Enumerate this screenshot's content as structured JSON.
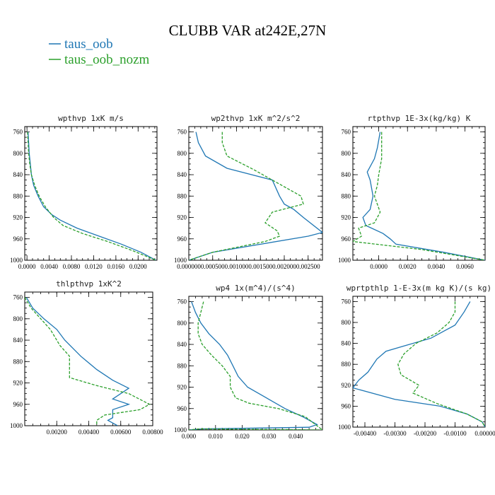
{
  "figure_title": "CLUBB VAR at242E,27N",
  "legend": [
    {
      "label": "taus_oob",
      "color": "#1f77b4"
    },
    {
      "label": "taus_oob_nozm",
      "color": "#2ca02c"
    }
  ],
  "chart_data": [
    {
      "type": "line",
      "title": "wpthvp   1xK m/s",
      "xlim": [
        -0.0004,
        0.0234
      ],
      "ylim": [
        1000,
        750
      ],
      "x_ticks": [
        "0.0000",
        "0.0040",
        "0.0080",
        "0.0120",
        "0.0160",
        "0.0200"
      ],
      "x_tick_values": [
        0.0,
        0.004,
        0.008,
        0.012,
        0.016,
        0.02
      ],
      "y_ticks": [
        "760",
        "800",
        "840",
        "880",
        "920",
        "960",
        "1000"
      ],
      "y_tick_values": [
        760,
        800,
        840,
        880,
        920,
        960,
        1000
      ],
      "series": [
        {
          "name": "taus_oob",
          "color": "#1f77b4",
          "x": [
            0.0002,
            0.0003,
            0.0004,
            0.0006,
            0.0008,
            0.0012,
            0.002,
            0.003,
            0.0045,
            0.006,
            0.009,
            0.013,
            0.017,
            0.0205,
            0.0232
          ],
          "y": [
            760,
            780,
            800,
            820,
            840,
            860,
            880,
            900,
            915,
            925,
            940,
            955,
            970,
            985,
            1000
          ]
        },
        {
          "name": "taus_oob_nozm",
          "color": "#2ca02c",
          "x": [
            0.0001,
            0.0002,
            0.0003,
            0.0005,
            0.0008,
            0.0014,
            0.0022,
            0.0033,
            0.0048,
            0.0065,
            0.01,
            0.0145,
            0.019,
            0.0232
          ],
          "y": [
            760,
            780,
            800,
            820,
            840,
            860,
            880,
            900,
            920,
            935,
            950,
            965,
            982,
            1000
          ]
        }
      ]
    },
    {
      "type": "line",
      "title": "wp2thvp   1xK m^2/s^2",
      "xlim": [
        0.0,
        0.0028
      ],
      "ylim": [
        1000,
        750
      ],
      "x_ticks": [
        "0.000000",
        "0.000500",
        "0.001000",
        "0.001500",
        "0.002000",
        "0.002500"
      ],
      "x_tick_values": [
        0.0,
        0.0005,
        0.001,
        0.0015,
        0.002,
        0.0025
      ],
      "y_ticks": [
        "760",
        "800",
        "840",
        "880",
        "920",
        "960",
        "1000"
      ],
      "y_tick_values": [
        760,
        800,
        840,
        880,
        920,
        960,
        1000
      ],
      "series": [
        {
          "name": "taus_oob",
          "color": "#1f77b4",
          "x": [
            0.00015,
            0.0002,
            0.00035,
            0.0008,
            0.00175,
            0.0019,
            0.002,
            0.0022,
            0.0024,
            0.0028,
            0.0025,
            0.0005,
            0.0
          ],
          "y": [
            760,
            780,
            805,
            828,
            850,
            880,
            895,
            905,
            920,
            948,
            955,
            985,
            1000
          ]
        },
        {
          "name": "taus_oob_nozm",
          "color": "#2ca02c",
          "x": [
            0.0007,
            0.0007,
            0.0008,
            0.00135,
            0.00235,
            0.0024,
            0.00175,
            0.0016,
            0.00185,
            0.0019,
            0.0016,
            0.0005,
            0.0
          ],
          "y": [
            760,
            780,
            805,
            830,
            880,
            895,
            910,
            930,
            945,
            955,
            965,
            985,
            1000
          ]
        }
      ]
    },
    {
      "type": "line",
      "title": "rtpthvp   1E-3x(kg/kg) K",
      "xlim": [
        -0.0018,
        0.0074
      ],
      "ylim": [
        1000,
        750
      ],
      "x_ticks": [
        "0.0000",
        "0.0020",
        "0.0040",
        "0.0060"
      ],
      "x_tick_values": [
        0.0,
        0.002,
        0.004,
        0.006
      ],
      "y_ticks": [
        "760",
        "800",
        "840",
        "880",
        "920",
        "960",
        "1000"
      ],
      "y_tick_values": [
        760,
        800,
        840,
        880,
        920,
        960,
        1000
      ],
      "series": [
        {
          "name": "taus_oob",
          "color": "#1f77b4",
          "x": [
            0.0001,
            -0.0001,
            -0.0003,
            -0.0008,
            -0.0006,
            -0.0004,
            -0.0006,
            -0.0011,
            -0.0009,
            0.0003,
            0.0008,
            0.0012,
            0.0045,
            0.0074
          ],
          "y": [
            760,
            790,
            810,
            835,
            850,
            880,
            905,
            920,
            935,
            950,
            960,
            970,
            985,
            1000
          ]
        },
        {
          "name": "taus_oob_nozm",
          "color": "#2ca02c",
          "x": [
            0.0002,
            0.0002,
            0.0002,
            0.0,
            -0.0001,
            -0.0003,
            0.0001,
            -0.0003,
            -0.0014,
            -0.0012,
            -0.0018,
            0.003,
            0.0074
          ],
          "y": [
            760,
            790,
            810,
            840,
            860,
            880,
            910,
            930,
            940,
            955,
            965,
            980,
            1000
          ]
        }
      ]
    },
    {
      "type": "line",
      "title": "thlpthvp   1xK^2",
      "xlim": [
        0.0,
        0.008
      ],
      "ylim": [
        1000,
        750
      ],
      "x_ticks": [
        "0.00200",
        "0.00400",
        "0.00600",
        "0.00800"
      ],
      "x_tick_values": [
        0.002,
        0.004,
        0.006,
        0.008
      ],
      "y_ticks": [
        "760",
        "800",
        "840",
        "880",
        "920",
        "960",
        "1000"
      ],
      "y_tick_values": [
        760,
        800,
        840,
        880,
        920,
        960,
        1000
      ],
      "series": [
        {
          "name": "taus_oob",
          "color": "#1f77b4",
          "x": [
            0.0001,
            0.0005,
            0.0012,
            0.002,
            0.0025,
            0.0035,
            0.0045,
            0.0055,
            0.0065,
            0.0055,
            0.0065,
            0.0055,
            0.0055,
            0.0052,
            0.0058
          ],
          "y": [
            760,
            780,
            800,
            820,
            840,
            870,
            895,
            915,
            930,
            950,
            960,
            970,
            985,
            990,
            1000
          ]
        },
        {
          "name": "taus_oob_nozm",
          "color": "#2ca02c",
          "x": [
            0.0,
            0.0004,
            0.001,
            0.0016,
            0.0022,
            0.0028,
            0.0028,
            0.0045,
            0.0065,
            0.0078,
            0.0072,
            0.005,
            0.0045,
            0.0045
          ],
          "y": [
            760,
            780,
            800,
            820,
            850,
            870,
            910,
            925,
            940,
            960,
            970,
            980,
            990,
            1000
          ]
        }
      ]
    },
    {
      "type": "line",
      "title": "wp4   1x(m^4)/(s^4)",
      "xlim": [
        0.0,
        0.05
      ],
      "ylim": [
        1000,
        750
      ],
      "x_ticks": [
        "0.000",
        "0.010",
        "0.020",
        "0.030",
        "0.040"
      ],
      "x_tick_values": [
        0.0,
        0.01,
        0.02,
        0.03,
        0.04
      ],
      "y_ticks": [
        "760",
        "800",
        "840",
        "880",
        "920",
        "960",
        "1000"
      ],
      "y_tick_values": [
        760,
        800,
        840,
        880,
        920,
        960,
        1000
      ],
      "series": [
        {
          "name": "taus_oob",
          "color": "#1f77b4",
          "x": [
            0.001,
            0.0025,
            0.0045,
            0.0075,
            0.0115,
            0.0145,
            0.0165,
            0.0185,
            0.022,
            0.029,
            0.036,
            0.0425,
            0.048,
            0.045,
            0.005,
            0.0
          ],
          "y": [
            760,
            780,
            800,
            820,
            840,
            860,
            880,
            900,
            920,
            940,
            960,
            975,
            990,
            995,
            998,
            1000
          ]
        },
        {
          "name": "taus_oob_nozm",
          "color": "#2ca02c",
          "x": [
            0.0055,
            0.0045,
            0.0035,
            0.0035,
            0.005,
            0.0085,
            0.0125,
            0.0155,
            0.0155,
            0.0175,
            0.0225,
            0.0335,
            0.0435,
            0.05,
            0.004,
            0.0
          ],
          "y": [
            760,
            780,
            800,
            820,
            840,
            860,
            880,
            900,
            920,
            940,
            950,
            960,
            975,
            1000,
            998,
            1000
          ]
        }
      ]
    },
    {
      "type": "line",
      "title": "wprtpthlp   1-E-3x(m kg K)/(s kg)",
      "xlim": [
        -0.0044,
        0.0
      ],
      "ylim": [
        1000,
        750
      ],
      "x_ticks": [
        "-0.00400",
        "-0.00300",
        "-0.00200",
        "-0.00100",
        "0.00000"
      ],
      "x_tick_values": [
        -0.004,
        -0.003,
        -0.002,
        -0.001,
        0.0
      ],
      "y_ticks": [
        "760",
        "800",
        "840",
        "880",
        "920",
        "960",
        "1000"
      ],
      "y_tick_values": [
        760,
        800,
        840,
        880,
        920,
        960,
        1000
      ],
      "series": [
        {
          "name": "taus_oob",
          "color": "#1f77b4",
          "x": [
            -0.0005,
            -0.0007,
            -0.001,
            -0.0018,
            -0.0027,
            -0.0033,
            -0.0036,
            -0.0039,
            -0.0042,
            -0.0044,
            -0.003,
            -0.0015,
            -0.0006,
            -0.0001,
            0.0
          ],
          "y": [
            760,
            780,
            805,
            830,
            845,
            855,
            870,
            895,
            910,
            925,
            947,
            960,
            975,
            990,
            1000
          ]
        },
        {
          "name": "taus_oob_nozm",
          "color": "#2ca02c",
          "x": [
            -0.001,
            -0.001,
            -0.0012,
            -0.0016,
            -0.0023,
            -0.0027,
            -0.0029,
            -0.0028,
            -0.0022,
            -0.0024,
            -0.0016,
            -0.0006,
            -0.0001,
            0.0
          ],
          "y": [
            760,
            780,
            800,
            820,
            840,
            860,
            880,
            900,
            920,
            935,
            955,
            975,
            990,
            1000
          ]
        }
      ]
    }
  ]
}
